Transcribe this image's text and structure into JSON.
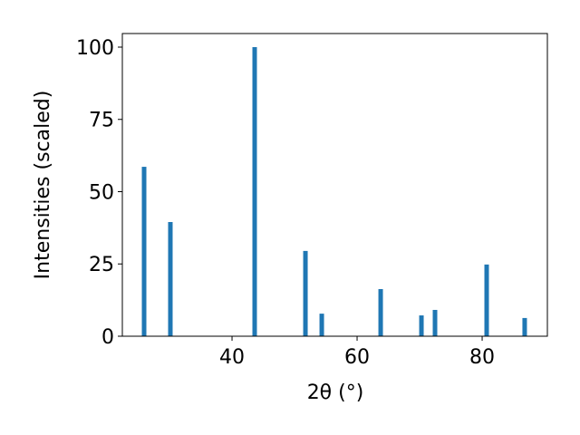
{
  "chart_data": {
    "type": "bar",
    "x_label": "2θ (°)",
    "y_label": "Intensities (scaled)",
    "x": [
      25.94,
      30.14,
      43.62,
      51.74,
      54.35,
      63.77,
      70.29,
      72.46,
      80.72,
      86.8
    ],
    "values": [
      58.6,
      39.5,
      100,
      29.5,
      7.8,
      16.3,
      7.2,
      9.1,
      24.8,
      6.3
    ],
    "color": "#1f77b4",
    "xlim": [
      22.46,
      90.43
    ],
    "ylim": [
      0,
      104.7
    ],
    "xticks": [
      40,
      60,
      80
    ],
    "yticks": [
      0,
      25,
      50,
      75,
      100
    ]
  }
}
